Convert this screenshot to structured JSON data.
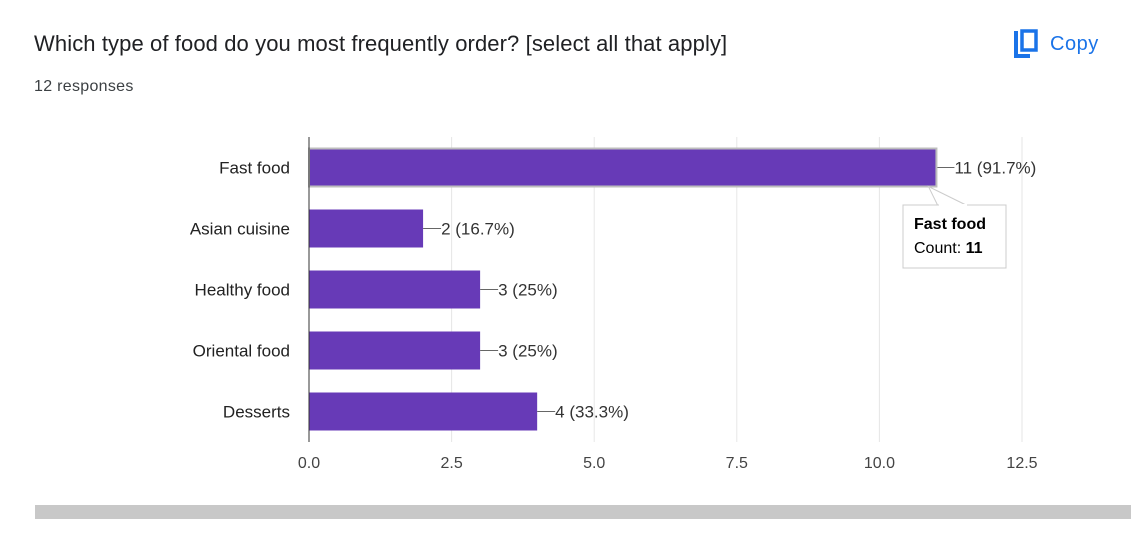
{
  "question": "Which type of food do you most frequently order? [select all that apply]",
  "responses": "12 responses",
  "copy_label": "Copy",
  "colors": {
    "bar": "#673ab7",
    "accent": "#1a73e8"
  },
  "chart_data": {
    "type": "bar",
    "orientation": "horizontal",
    "categories": [
      "Fast food",
      "Asian cuisine",
      "Healthy food",
      "Oriental food",
      "Desserts"
    ],
    "values": [
      11,
      2,
      3,
      3,
      4
    ],
    "data_labels": [
      "11 (91.7%)",
      "2 (16.7%)",
      "3 (25%)",
      "3 (25%)",
      "4 (33.3%)"
    ],
    "xticks": [
      "0.0",
      "2.5",
      "5.0",
      "7.5",
      "10.0",
      "12.5"
    ],
    "xlim": [
      0,
      12.5
    ],
    "grid": true,
    "tooltip": {
      "title": "Fast food",
      "label": "Count: ",
      "value": "11"
    }
  }
}
